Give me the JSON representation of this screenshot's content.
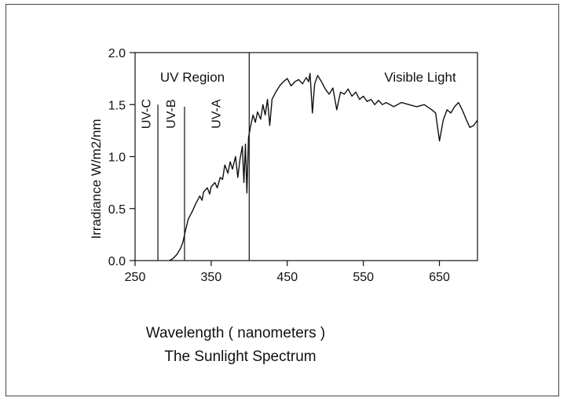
{
  "chart_data": {
    "type": "line",
    "title": "The Sunlight Spectrum",
    "xlabel": "Wavelength ( nanometers )",
    "ylabel": "Irradiance  W/m2/nm",
    "xlim": [
      250,
      700
    ],
    "ylim": [
      0.0,
      2.0
    ],
    "x_ticks": [
      250,
      350,
      450,
      550,
      650
    ],
    "x_tick_labels": [
      "250",
      "350",
      "450",
      "550",
      "650"
    ],
    "y_ticks": [
      0.0,
      0.5,
      1.0,
      1.5,
      2.0
    ],
    "y_tick_labels": [
      "0.0",
      "0.5",
      "1.0",
      "1.5",
      "2.0"
    ],
    "grid": false,
    "region_lines": [
      {
        "x": 280,
        "ymax": 1.5,
        "label": "UV-C"
      },
      {
        "x": 315,
        "ymax": 1.48,
        "label": "UV-B"
      },
      {
        "x": 400,
        "ymax": 2.0,
        "label": "UV-A"
      }
    ],
    "region_labels": [
      "UV Region",
      "Visible Light"
    ],
    "series": [
      {
        "values": [
          [
            295,
            0.0
          ],
          [
            300,
            0.02
          ],
          [
            305,
            0.06
          ],
          [
            310,
            0.12
          ],
          [
            313,
            0.18
          ],
          [
            316,
            0.28
          ],
          [
            320,
            0.4
          ],
          [
            325,
            0.47
          ],
          [
            330,
            0.55
          ],
          [
            335,
            0.62
          ],
          [
            338,
            0.58
          ],
          [
            340,
            0.66
          ],
          [
            345,
            0.7
          ],
          [
            348,
            0.64
          ],
          [
            350,
            0.71
          ],
          [
            355,
            0.75
          ],
          [
            358,
            0.7
          ],
          [
            362,
            0.8
          ],
          [
            365,
            0.78
          ],
          [
            368,
            0.92
          ],
          [
            372,
            0.84
          ],
          [
            375,
            0.95
          ],
          [
            378,
            0.88
          ],
          [
            382,
            1.0
          ],
          [
            385,
            0.8
          ],
          [
            388,
            0.98
          ],
          [
            391,
            1.1
          ],
          [
            393,
            0.75
          ],
          [
            395,
            1.12
          ],
          [
            397,
            0.65
          ],
          [
            399,
            1.18
          ],
          [
            402,
            1.3
          ],
          [
            405,
            1.4
          ],
          [
            408,
            1.33
          ],
          [
            411,
            1.43
          ],
          [
            415,
            1.36
          ],
          [
            418,
            1.5
          ],
          [
            421,
            1.4
          ],
          [
            424,
            1.55
          ],
          [
            427,
            1.3
          ],
          [
            430,
            1.55
          ],
          [
            435,
            1.62
          ],
          [
            440,
            1.68
          ],
          [
            445,
            1.72
          ],
          [
            450,
            1.75
          ],
          [
            455,
            1.68
          ],
          [
            460,
            1.72
          ],
          [
            465,
            1.74
          ],
          [
            470,
            1.7
          ],
          [
            475,
            1.76
          ],
          [
            478,
            1.72
          ],
          [
            480,
            1.8
          ],
          [
            483,
            1.42
          ],
          [
            486,
            1.7
          ],
          [
            490,
            1.78
          ],
          [
            495,
            1.72
          ],
          [
            500,
            1.65
          ],
          [
            505,
            1.6
          ],
          [
            510,
            1.66
          ],
          [
            515,
            1.45
          ],
          [
            520,
            1.62
          ],
          [
            525,
            1.6
          ],
          [
            530,
            1.65
          ],
          [
            535,
            1.58
          ],
          [
            540,
            1.62
          ],
          [
            545,
            1.55
          ],
          [
            550,
            1.58
          ],
          [
            555,
            1.53
          ],
          [
            560,
            1.55
          ],
          [
            565,
            1.5
          ],
          [
            570,
            1.54
          ],
          [
            575,
            1.5
          ],
          [
            580,
            1.52
          ],
          [
            590,
            1.48
          ],
          [
            600,
            1.52
          ],
          [
            610,
            1.5
          ],
          [
            620,
            1.48
          ],
          [
            630,
            1.5
          ],
          [
            640,
            1.45
          ],
          [
            645,
            1.42
          ],
          [
            650,
            1.15
          ],
          [
            655,
            1.35
          ],
          [
            660,
            1.45
          ],
          [
            665,
            1.42
          ],
          [
            670,
            1.48
          ],
          [
            675,
            1.52
          ],
          [
            680,
            1.45
          ],
          [
            685,
            1.36
          ],
          [
            690,
            1.28
          ],
          [
            695,
            1.3
          ],
          [
            700,
            1.35
          ]
        ]
      }
    ]
  }
}
